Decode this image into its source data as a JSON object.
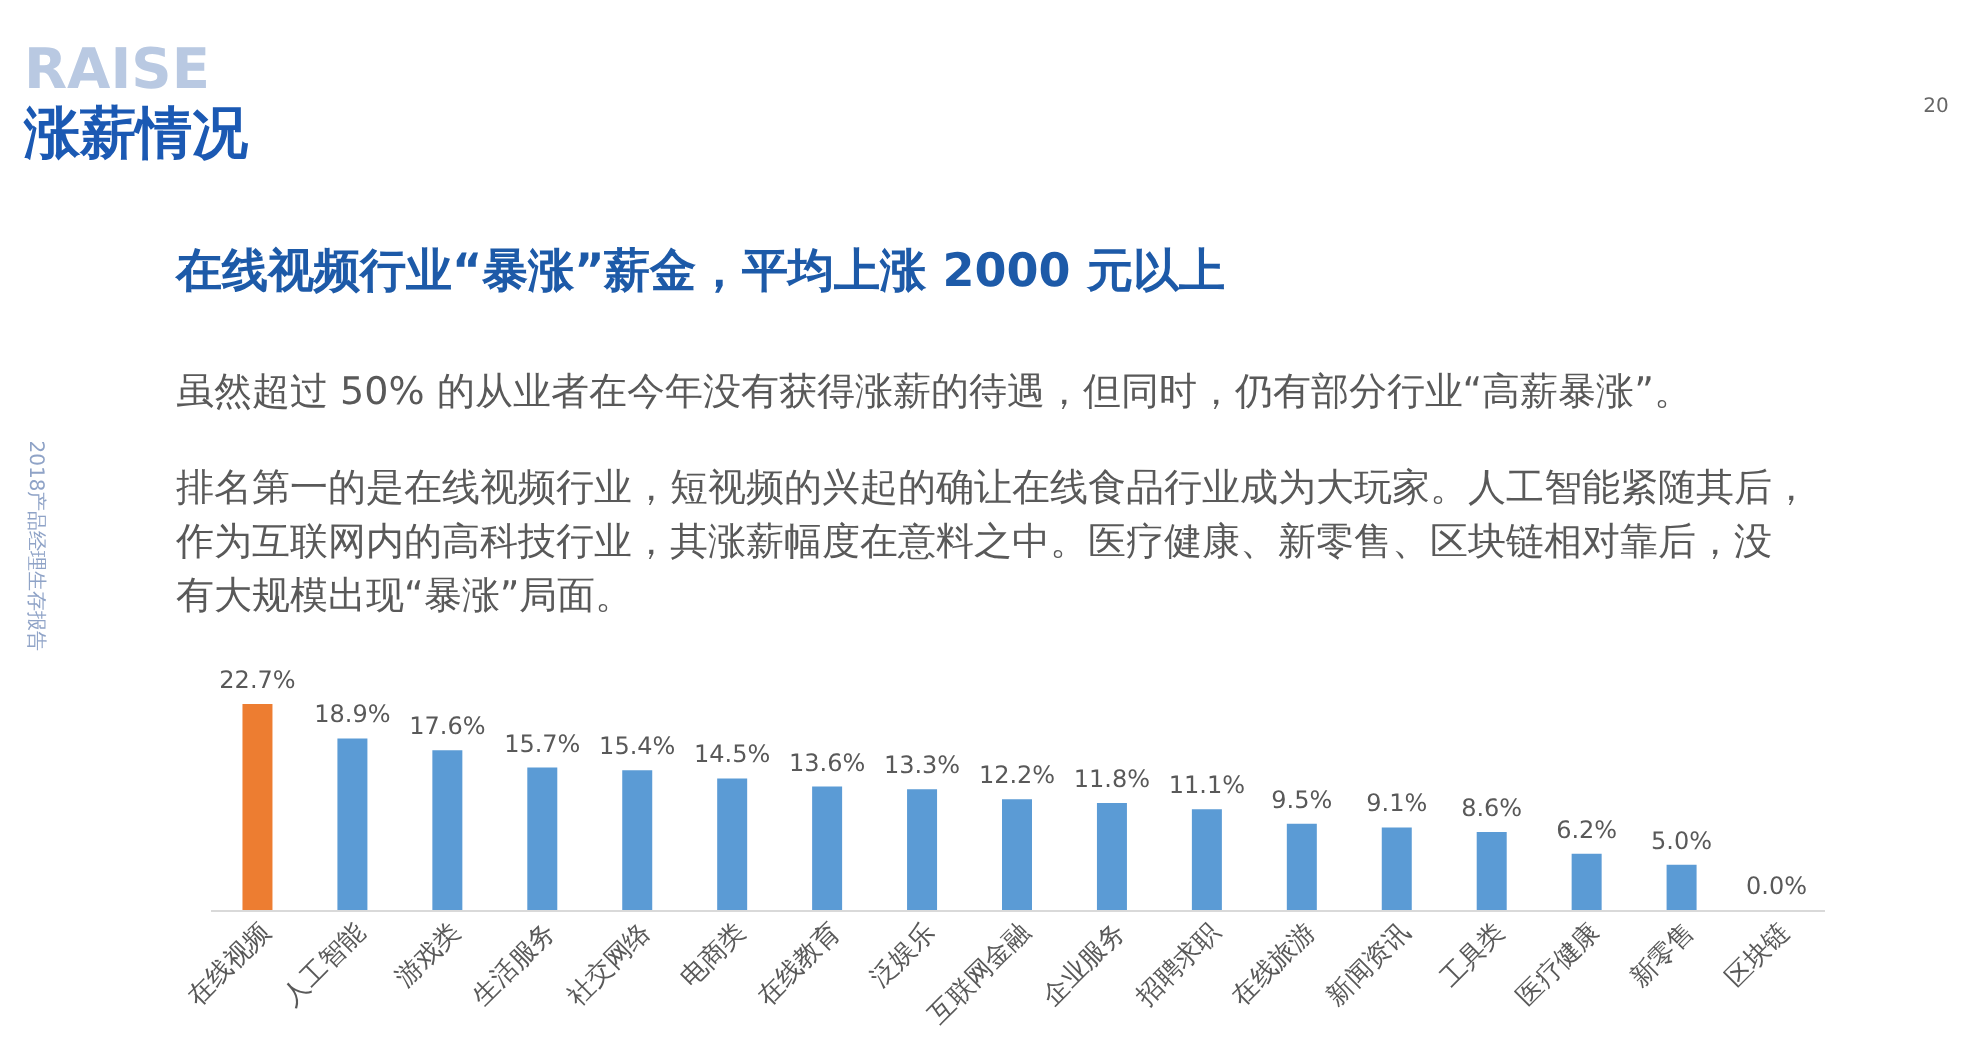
{
  "chart_data": {
    "type": "bar",
    "title": "涨薪情况",
    "subtitle": "在线视频行业“暴涨”薪金，平均上涨 2000 元以上",
    "annotations": [
      "RAISE",
      "20",
      "2018产品经理生存报告",
      "虽然超过 50% 的从业者在今年没有获得涨薪的待遇，但同时，仍有部分行业“高薪暴涨”。",
      "排名第一的是在线视频行业，短视频的兴起的确让在线食品行业成为大玩家。人工智能紧随其后，",
      "作为互联网内的高科技行业，其涨薪幅度在意料之中。医疗健康、新零售、区块链相对靠后，没",
      "有大规模出现“暴涨”局面。"
    ],
    "categories": [
      "在线视频",
      "人工智能",
      "游戏类",
      "生活服务",
      "社交网络",
      "电商类",
      "在线教育",
      "泛娱乐",
      "互联网金融",
      "企业服务",
      "招聘求职",
      "在线旅游",
      "新闻资讯",
      "工具类",
      "医疗健康",
      "新零售",
      "区块链"
    ],
    "values": [
      22.7,
      18.9,
      17.6,
      15.7,
      15.4,
      14.5,
      13.6,
      13.3,
      12.2,
      11.8,
      11.1,
      9.5,
      9.1,
      8.6,
      6.2,
      5.0,
      0.0
    ],
    "value_labels": [
      "22.7%",
      "18.9%",
      "17.6%",
      "15.7%",
      "15.4%",
      "14.5%",
      "13.6%",
      "13.3%",
      "12.2%",
      "11.8%",
      "11.1%",
      "9.5%",
      "9.1%",
      "8.6%",
      "6.2%",
      "5.0%",
      "0.0%"
    ],
    "colors": [
      "#ed7d31",
      "#5b9bd5",
      "#5b9bd5",
      "#5b9bd5",
      "#5b9bd5",
      "#5b9bd5",
      "#5b9bd5",
      "#5b9bd5",
      "#5b9bd5",
      "#5b9bd5",
      "#5b9bd5",
      "#5b9bd5",
      "#5b9bd5",
      "#5b9bd5",
      "#5b9bd5",
      "#5b9bd5",
      "#5b9bd5"
    ],
    "grid": false
  }
}
